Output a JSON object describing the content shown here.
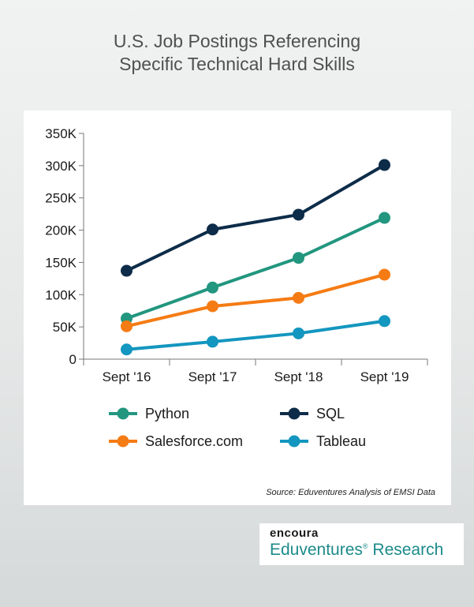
{
  "title_line1": "U.S. Job Postings Referencing",
  "title_line2": "Specific Technical Hard Skills",
  "source": "Source: Eduventures Analysis of EMSI Data",
  "brand": {
    "top": "encoura",
    "bottom": "Eduventures",
    "reg": "®",
    "bottom_suffix": " Research"
  },
  "chart_data": {
    "type": "line",
    "title": "U.S. Job Postings Referencing Specific Technical Hard Skills",
    "x": [
      "Sept '16",
      "Sept '17",
      "Sept '18",
      "Sept '19"
    ],
    "y_ticks": [
      "0",
      "50K",
      "100K",
      "150K",
      "200K",
      "250K",
      "300K",
      "350K"
    ],
    "ylim": [
      0,
      350000
    ],
    "grid": false,
    "legend_position": "bottom",
    "series": [
      {
        "name": "Python",
        "color": "#22967f",
        "values": [
          63000,
          111000,
          157000,
          219000
        ]
      },
      {
        "name": "SQL",
        "color": "#0d2c49",
        "values": [
          137000,
          201000,
          224000,
          301000
        ]
      },
      {
        "name": "Salesforce.com",
        "color": "#f57b14",
        "values": [
          51000,
          82000,
          95000,
          131000
        ]
      },
      {
        "name": "Tableau",
        "color": "#1396bf",
        "values": [
          15000,
          27000,
          40000,
          59000
        ]
      }
    ]
  }
}
